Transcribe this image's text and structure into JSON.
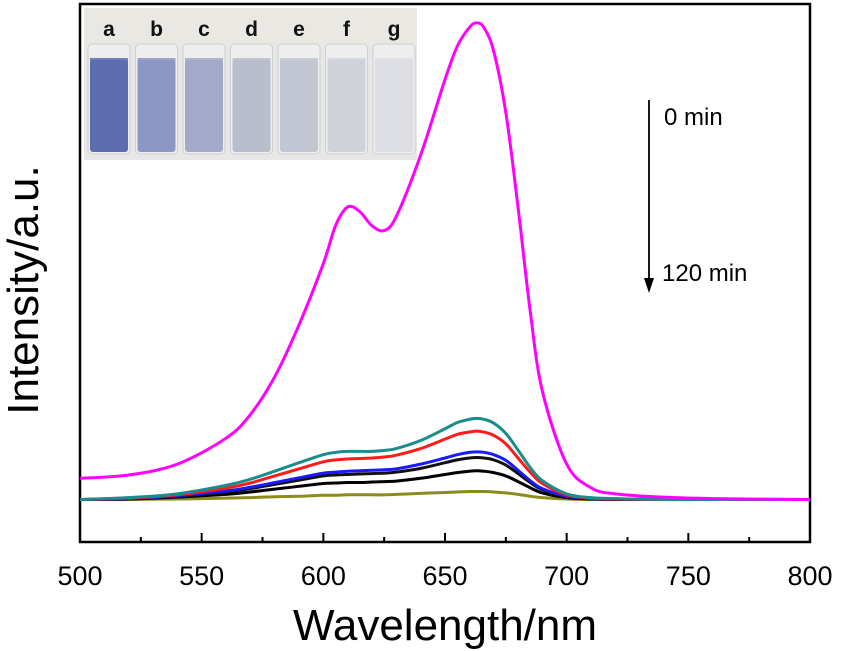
{
  "chart_data": {
    "type": "line",
    "title": "",
    "xlabel": "Wavelength/nm",
    "ylabel": "Intensity/a.u.",
    "xlim": [
      500,
      800
    ],
    "ylim": [
      -0.09,
      1.05
    ],
    "x_ticks": [
      "500",
      "550",
      "600",
      "650",
      "700",
      "750",
      "800"
    ],
    "y_ticks_shown": false,
    "grid": false,
    "annotations": {
      "arrow_start": "0 min",
      "arrow_end": "120 min"
    },
    "inset": {
      "description_labels": [
        "a",
        "b",
        "c",
        "d",
        "e",
        "f",
        "g"
      ],
      "vial_colors": [
        "#5d6cae",
        "#8d97c5",
        "#a3aac9",
        "#b9bdce",
        "#c2c5d2",
        "#d0d2da",
        "#dcdee3"
      ]
    },
    "x": [
      500,
      520,
      540,
      560,
      570,
      580,
      590,
      600,
      605,
      610,
      615,
      620,
      625,
      630,
      640,
      650,
      655,
      660,
      663,
      666,
      670,
      675,
      680,
      685,
      690,
      700,
      710,
      720,
      740,
      760,
      800
    ],
    "series": [
      {
        "color": "#ff00ff",
        "values": [
          0.045,
          0.052,
          0.075,
          0.13,
          0.18,
          0.26,
          0.37,
          0.5,
          0.58,
          0.62,
          0.61,
          0.58,
          0.57,
          0.6,
          0.73,
          0.89,
          0.96,
          1.0,
          1.01,
          1.0,
          0.95,
          0.82,
          0.62,
          0.4,
          0.23,
          0.075,
          0.025,
          0.012,
          0.005,
          0.002,
          0.0
        ]
      },
      {
        "color": "#1a8c8c",
        "values": [
          0.0,
          0.004,
          0.012,
          0.03,
          0.043,
          0.06,
          0.078,
          0.095,
          0.1,
          0.102,
          0.102,
          0.102,
          0.104,
          0.108,
          0.125,
          0.15,
          0.163,
          0.17,
          0.172,
          0.17,
          0.162,
          0.14,
          0.105,
          0.068,
          0.04,
          0.012,
          0.004,
          0.002,
          0.0,
          0.0,
          0.0
        ]
      },
      {
        "color": "#ff1a1a",
        "values": [
          0.0,
          0.003,
          0.01,
          0.024,
          0.035,
          0.05,
          0.065,
          0.08,
          0.084,
          0.086,
          0.087,
          0.088,
          0.09,
          0.094,
          0.108,
          0.128,
          0.138,
          0.143,
          0.145,
          0.143,
          0.136,
          0.118,
          0.088,
          0.058,
          0.034,
          0.01,
          0.003,
          0.001,
          0.0,
          0.0,
          0.0
        ]
      },
      {
        "color": "#1a1aff",
        "values": [
          0.0,
          0.002,
          0.008,
          0.018,
          0.026,
          0.036,
          0.046,
          0.056,
          0.058,
          0.06,
          0.061,
          0.062,
          0.063,
          0.065,
          0.075,
          0.088,
          0.095,
          0.1,
          0.101,
          0.1,
          0.095,
          0.083,
          0.062,
          0.04,
          0.023,
          0.007,
          0.002,
          0.001,
          0.0,
          0.0,
          0.0
        ]
      },
      {
        "color": "#111111",
        "values": [
          0.0,
          0.002,
          0.007,
          0.016,
          0.023,
          0.032,
          0.041,
          0.05,
          0.052,
          0.053,
          0.054,
          0.055,
          0.056,
          0.058,
          0.066,
          0.078,
          0.084,
          0.088,
          0.089,
          0.088,
          0.084,
          0.073,
          0.055,
          0.036,
          0.021,
          0.006,
          0.002,
          0.001,
          0.0,
          0.0,
          0.0
        ]
      },
      {
        "color": "#000000",
        "values": [
          0.0,
          0.001,
          0.005,
          0.011,
          0.016,
          0.022,
          0.028,
          0.034,
          0.035,
          0.036,
          0.036,
          0.037,
          0.038,
          0.039,
          0.045,
          0.053,
          0.057,
          0.06,
          0.061,
          0.06,
          0.057,
          0.05,
          0.038,
          0.025,
          0.014,
          0.004,
          0.001,
          0.0,
          0.0,
          0.0,
          0.0
        ]
      },
      {
        "color": "#8c8c1a",
        "values": [
          0.0,
          0.0,
          0.001,
          0.003,
          0.004,
          0.006,
          0.007,
          0.009,
          0.009,
          0.01,
          0.01,
          0.01,
          0.01,
          0.011,
          0.013,
          0.015,
          0.016,
          0.017,
          0.017,
          0.017,
          0.016,
          0.014,
          0.011,
          0.007,
          0.004,
          0.001,
          0.0,
          0.0,
          0.0,
          0.0,
          0.0
        ]
      }
    ]
  }
}
